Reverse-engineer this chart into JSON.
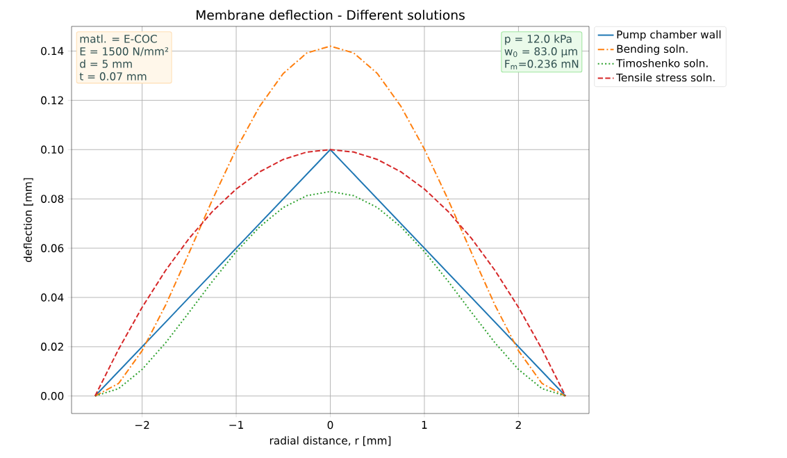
{
  "chart_data": {
    "type": "line",
    "title": "Membrane deflection - Different solutions",
    "xlabel": "radial distance, r [mm]",
    "ylabel": "deflection [mm]",
    "x": [
      -2.5,
      -2.25,
      -2.0,
      -1.75,
      -1.5,
      -1.25,
      -1.0,
      -0.75,
      -0.5,
      -0.25,
      0,
      0.25,
      0.5,
      0.75,
      1.0,
      1.25,
      1.5,
      1.75,
      2.0,
      2.25,
      2.5
    ],
    "series": [
      {
        "name": "Pump chamber wall",
        "color": "#1f77b4",
        "line_style": "solid",
        "x": [
          -2.5,
          0,
          2.5
        ],
        "values": [
          0,
          0.1,
          0
        ]
      },
      {
        "name": "Bending soln.",
        "color": "#ff7f0e",
        "line_style": "dashdot",
        "values": [
          0,
          0.0051,
          0.0184,
          0.0369,
          0.0582,
          0.0799,
          0.1002,
          0.1176,
          0.1309,
          0.1392,
          0.142,
          0.1392,
          0.1309,
          0.1176,
          0.1002,
          0.0799,
          0.0582,
          0.0369,
          0.0184,
          0.0051,
          0
        ]
      },
      {
        "name": "Timoshenko soln.",
        "color": "#2ca02c",
        "line_style": "dotted",
        "values": [
          0,
          0.003,
          0.0108,
          0.0216,
          0.034,
          0.0467,
          0.0586,
          0.0687,
          0.0765,
          0.0813,
          0.083,
          0.0813,
          0.0765,
          0.0687,
          0.0586,
          0.0467,
          0.034,
          0.0216,
          0.0108,
          0.003,
          0
        ]
      },
      {
        "name": "Tensile stress soln.",
        "color": "#d62728",
        "line_style": "dashed",
        "values": [
          0,
          0.019,
          0.036,
          0.051,
          0.064,
          0.075,
          0.084,
          0.091,
          0.096,
          0.099,
          0.1,
          0.099,
          0.096,
          0.091,
          0.084,
          0.075,
          0.064,
          0.051,
          0.036,
          0.019,
          0
        ]
      }
    ],
    "xlim": [
      -2.75,
      2.75
    ],
    "ylim": [
      -0.0071,
      0.15
    ],
    "xticks": [
      {
        "value": -2,
        "label": "−2"
      },
      {
        "value": -1,
        "label": "−1"
      },
      0,
      1,
      2
    ],
    "yticks": [
      {
        "value": 0,
        "label": "0.00"
      },
      {
        "value": 0.02,
        "label": "0.02"
      },
      {
        "value": 0.04,
        "label": "0.04"
      },
      {
        "value": 0.06,
        "label": "0.06"
      },
      {
        "value": 0.08,
        "label": "0.08"
      },
      {
        "value": 0.1,
        "label": "0.10"
      },
      {
        "value": 0.12,
        "label": "0.12"
      },
      {
        "value": 0.14,
        "label": "0.14"
      }
    ],
    "annotations": [
      "matl. = E-COC",
      "E = 1500 N/mm²",
      "d = 5 mm",
      "t = 0.07 mm",
      "p = 12.0 kPa",
      "w$_{0}$ = 83.0 µm",
      "F$_{m}$=0.236 mN"
    ],
    "grid": true,
    "legend": "right",
    "marker": "none"
  }
}
